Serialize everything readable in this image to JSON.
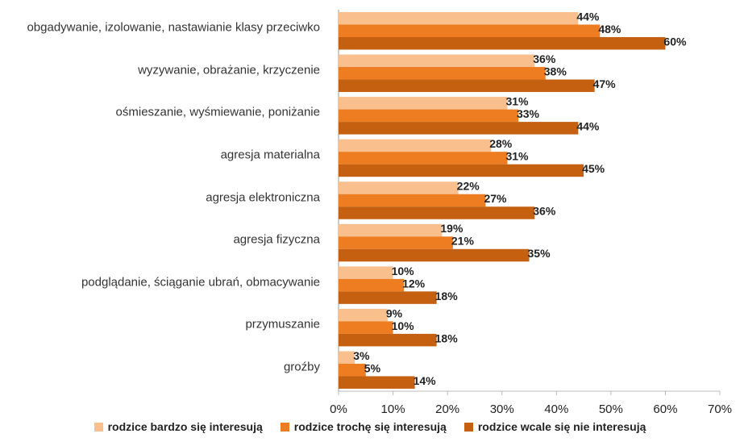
{
  "chart_data": {
    "type": "bar",
    "orientation": "horizontal",
    "categories": [
      "obgadywanie, izolowanie, nastawianie klasy przeciwko",
      "wyzywanie, obrażanie, krzyczenie",
      "ośmieszanie, wyśmiewanie, poniżanie",
      "agresja materialna",
      "agresja elektroniczna",
      "agresja fizyczna",
      "podglądanie, ściąganie ubrań, obmacywanie",
      "przymuszanie",
      "groźby"
    ],
    "series": [
      {
        "name": "rodzice bardzo się interesują",
        "color": "#f9bf8d",
        "values": [
          44,
          36,
          31,
          28,
          22,
          19,
          10,
          9,
          3
        ],
        "value_labels": [
          "44%",
          "36%",
          "31%",
          "28%",
          "22%",
          "19%",
          "10%",
          "9%",
          "3%"
        ]
      },
      {
        "name": "rodzice trochę się interesują",
        "color": "#ee7c20",
        "values": [
          48,
          38,
          33,
          31,
          27,
          21,
          12,
          10,
          5
        ],
        "value_labels": [
          "48%",
          "38%",
          "33%",
          "31%",
          "27%",
          "21%",
          "12%",
          "10%",
          "5%"
        ]
      },
      {
        "name": "rodzice wcale się nie interesują",
        "color": "#c4600f",
        "values": [
          60,
          47,
          44,
          45,
          36,
          35,
          18,
          18,
          14
        ],
        "value_labels": [
          "60%",
          "47%",
          "44%",
          "45%",
          "36%",
          "35%",
          "18%",
          "18%",
          "14%"
        ]
      }
    ],
    "xlim": [
      0,
      70
    ],
    "xticks": [
      {
        "value": 0,
        "label": "0%"
      },
      {
        "value": 10,
        "label": "10%"
      },
      {
        "value": 20,
        "label": "20%"
      },
      {
        "value": 30,
        "label": "30%"
      },
      {
        "value": 40,
        "label": "40%"
      },
      {
        "value": 50,
        "label": "50%"
      },
      {
        "value": 60,
        "label": "60%"
      },
      {
        "value": 70,
        "label": "70%"
      }
    ],
    "grid": false,
    "legend": "bottom"
  }
}
